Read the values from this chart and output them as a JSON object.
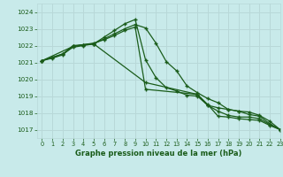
{
  "title": "Graphe pression niveau de la mer (hPa)",
  "bg_color": "#c8eaea",
  "grid_color": "#b8d8d8",
  "line_color": "#1a5c1a",
  "xlim": [
    -0.5,
    23
  ],
  "ylim": [
    1016.5,
    1024.5
  ],
  "yticks": [
    1017,
    1018,
    1019,
    1020,
    1021,
    1022,
    1023,
    1024
  ],
  "xticks": [
    0,
    1,
    2,
    3,
    4,
    5,
    6,
    7,
    8,
    9,
    10,
    11,
    12,
    13,
    14,
    15,
    16,
    17,
    18,
    19,
    20,
    21,
    22,
    23
  ],
  "series": [
    {
      "x": [
        0,
        1,
        2,
        3,
        4,
        5,
        6,
        7,
        8,
        9,
        10,
        11,
        12,
        13,
        14,
        15,
        16,
        17,
        18,
        19,
        20,
        21,
        22,
        23
      ],
      "y": [
        1021.1,
        1021.3,
        1021.5,
        1021.9,
        1022.0,
        1022.1,
        1022.4,
        1022.7,
        1023.0,
        1023.25,
        1023.05,
        1022.15,
        1021.05,
        1020.5,
        1019.6,
        1019.2,
        1018.85,
        1018.6,
        1018.2,
        1018.1,
        1018.05,
        1017.85,
        1017.5,
        1017.0
      ]
    },
    {
      "x": [
        0,
        1,
        2,
        3,
        4,
        5,
        6,
        7,
        8,
        9,
        10,
        11,
        12,
        13,
        14,
        15,
        16,
        17,
        18,
        19,
        20,
        21,
        22,
        23
      ],
      "y": [
        1021.1,
        1021.3,
        1021.5,
        1022.0,
        1022.05,
        1022.1,
        1022.5,
        1022.9,
        1023.3,
        1023.55,
        1021.15,
        1020.1,
        1019.5,
        1019.3,
        1019.05,
        1019.0,
        1018.45,
        1018.3,
        1018.2,
        1018.1,
        1017.9,
        1017.8,
        1017.35,
        1017.0
      ]
    },
    {
      "x": [
        0,
        1,
        2,
        3,
        4,
        5,
        6,
        7,
        8,
        9,
        10,
        15,
        16,
        17,
        18,
        19,
        20,
        21,
        22,
        23
      ],
      "y": [
        1021.1,
        1021.25,
        1021.45,
        1021.95,
        1022.05,
        1022.15,
        1022.35,
        1022.6,
        1022.9,
        1023.1,
        1019.4,
        1019.1,
        1018.45,
        1018.1,
        1017.85,
        1017.75,
        1017.75,
        1017.65,
        1017.3,
        1017.0
      ]
    },
    {
      "x": [
        0,
        3,
        4,
        5,
        10,
        15,
        16,
        17,
        18,
        19,
        20,
        21,
        22,
        23
      ],
      "y": [
        1021.1,
        1021.95,
        1022.05,
        1022.1,
        1019.8,
        1019.1,
        1018.5,
        1017.8,
        1017.75,
        1017.65,
        1017.6,
        1017.55,
        1017.25,
        1017.0
      ]
    }
  ]
}
